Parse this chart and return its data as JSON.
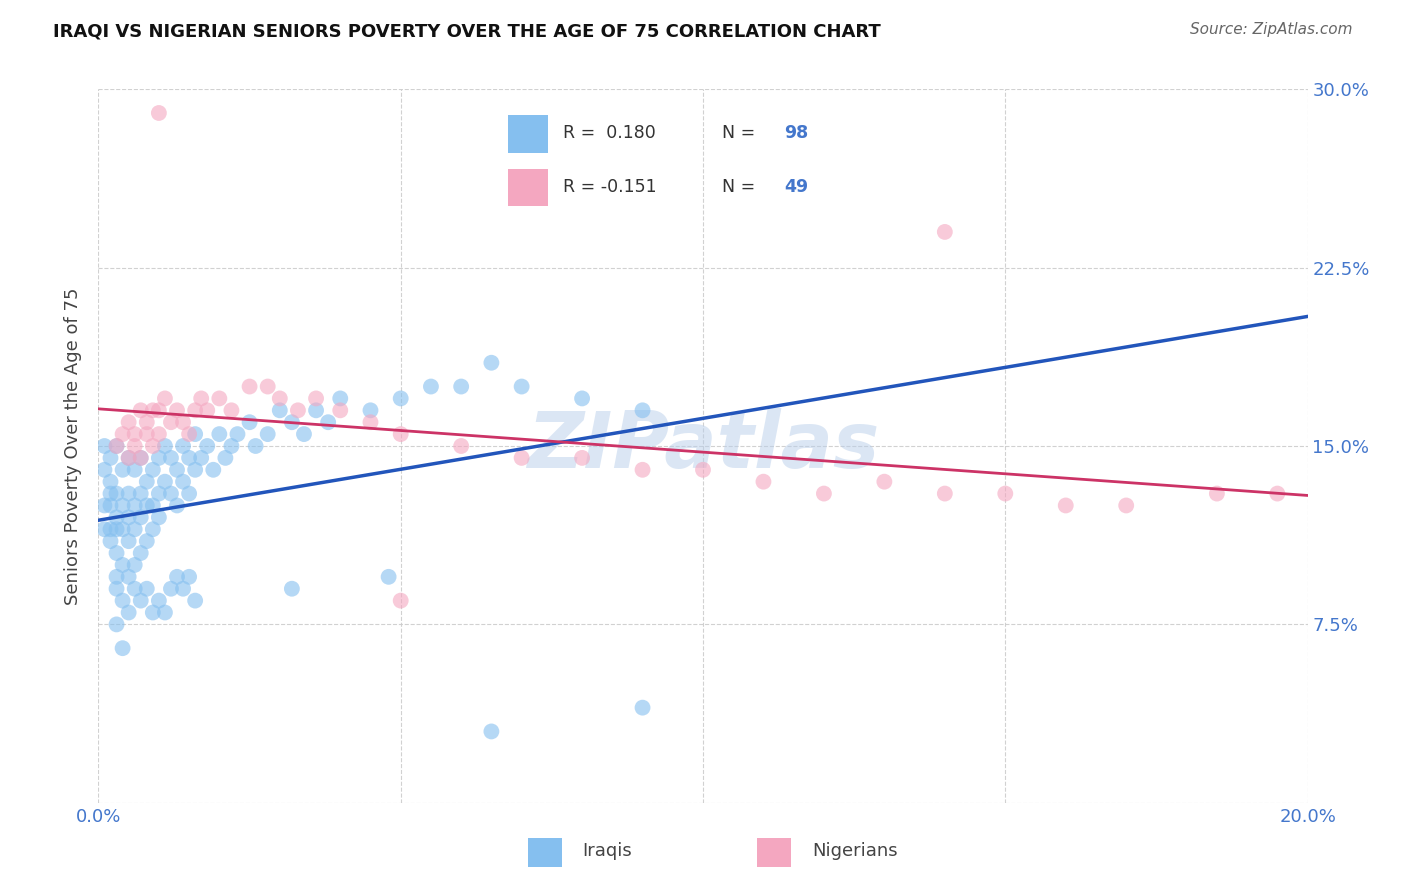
{
  "title": "IRAQI VS NIGERIAN SENIORS POVERTY OVER THE AGE OF 75 CORRELATION CHART",
  "source": "Source: ZipAtlas.com",
  "ylabel": "Seniors Poverty Over the Age of 75",
  "xlim": [
    0.0,
    0.2
  ],
  "ylim": [
    0.0,
    0.3
  ],
  "iraqi_color": "#85BFEF",
  "nigerian_color": "#F4A7C0",
  "iraqi_line_color": "#2255BB",
  "nigerian_line_color": "#CC3366",
  "legend_R_iraqi": "R =  0.180",
  "legend_N_iraqi": "N = 98",
  "legend_R_nigerian": "R = -0.151",
  "legend_N_nigerian": "N = 49",
  "watermark": "ZIPatlas",
  "iraqi_x": [
    0.001,
    0.001,
    0.001,
    0.001,
    0.002,
    0.002,
    0.002,
    0.002,
    0.002,
    0.002,
    0.003,
    0.003,
    0.003,
    0.003,
    0.003,
    0.003,
    0.003,
    0.004,
    0.004,
    0.004,
    0.004,
    0.004,
    0.005,
    0.005,
    0.005,
    0.005,
    0.005,
    0.006,
    0.006,
    0.006,
    0.006,
    0.007,
    0.007,
    0.007,
    0.007,
    0.008,
    0.008,
    0.008,
    0.009,
    0.009,
    0.009,
    0.01,
    0.01,
    0.01,
    0.011,
    0.011,
    0.012,
    0.012,
    0.013,
    0.013,
    0.014,
    0.014,
    0.015,
    0.015,
    0.016,
    0.016,
    0.017,
    0.018,
    0.019,
    0.02,
    0.021,
    0.022,
    0.023,
    0.025,
    0.026,
    0.028,
    0.03,
    0.032,
    0.034,
    0.036,
    0.038,
    0.04,
    0.045,
    0.05,
    0.055,
    0.06,
    0.065,
    0.07,
    0.08,
    0.09,
    0.003,
    0.004,
    0.005,
    0.006,
    0.007,
    0.008,
    0.009,
    0.01,
    0.011,
    0.012,
    0.013,
    0.014,
    0.015,
    0.016,
    0.032,
    0.048,
    0.065,
    0.09
  ],
  "iraqi_y": [
    0.125,
    0.14,
    0.15,
    0.115,
    0.13,
    0.145,
    0.115,
    0.125,
    0.11,
    0.135,
    0.15,
    0.13,
    0.12,
    0.115,
    0.095,
    0.105,
    0.09,
    0.14,
    0.125,
    0.115,
    0.1,
    0.085,
    0.145,
    0.13,
    0.12,
    0.11,
    0.095,
    0.14,
    0.125,
    0.115,
    0.1,
    0.145,
    0.13,
    0.12,
    0.105,
    0.135,
    0.125,
    0.11,
    0.14,
    0.125,
    0.115,
    0.145,
    0.13,
    0.12,
    0.15,
    0.135,
    0.145,
    0.13,
    0.14,
    0.125,
    0.15,
    0.135,
    0.145,
    0.13,
    0.155,
    0.14,
    0.145,
    0.15,
    0.14,
    0.155,
    0.145,
    0.15,
    0.155,
    0.16,
    0.15,
    0.155,
    0.165,
    0.16,
    0.155,
    0.165,
    0.16,
    0.17,
    0.165,
    0.17,
    0.175,
    0.175,
    0.185,
    0.175,
    0.17,
    0.165,
    0.075,
    0.065,
    0.08,
    0.09,
    0.085,
    0.09,
    0.08,
    0.085,
    0.08,
    0.09,
    0.095,
    0.09,
    0.095,
    0.085,
    0.09,
    0.095,
    0.03,
    0.04
  ],
  "nigerian_x": [
    0.003,
    0.004,
    0.005,
    0.005,
    0.006,
    0.006,
    0.007,
    0.007,
    0.008,
    0.008,
    0.009,
    0.009,
    0.01,
    0.01,
    0.011,
    0.012,
    0.013,
    0.014,
    0.015,
    0.016,
    0.017,
    0.018,
    0.02,
    0.022,
    0.025,
    0.028,
    0.03,
    0.033,
    0.036,
    0.04,
    0.045,
    0.05,
    0.06,
    0.07,
    0.08,
    0.09,
    0.1,
    0.11,
    0.12,
    0.13,
    0.14,
    0.15,
    0.16,
    0.17,
    0.185,
    0.195,
    0.05,
    0.01,
    0.14
  ],
  "nigerian_y": [
    0.15,
    0.155,
    0.16,
    0.145,
    0.15,
    0.155,
    0.165,
    0.145,
    0.155,
    0.16,
    0.165,
    0.15,
    0.155,
    0.165,
    0.17,
    0.16,
    0.165,
    0.16,
    0.155,
    0.165,
    0.17,
    0.165,
    0.17,
    0.165,
    0.175,
    0.175,
    0.17,
    0.165,
    0.17,
    0.165,
    0.16,
    0.155,
    0.15,
    0.145,
    0.145,
    0.14,
    0.14,
    0.135,
    0.13,
    0.135,
    0.24,
    0.13,
    0.125,
    0.125,
    0.13,
    0.13,
    0.085,
    0.29,
    0.13
  ]
}
